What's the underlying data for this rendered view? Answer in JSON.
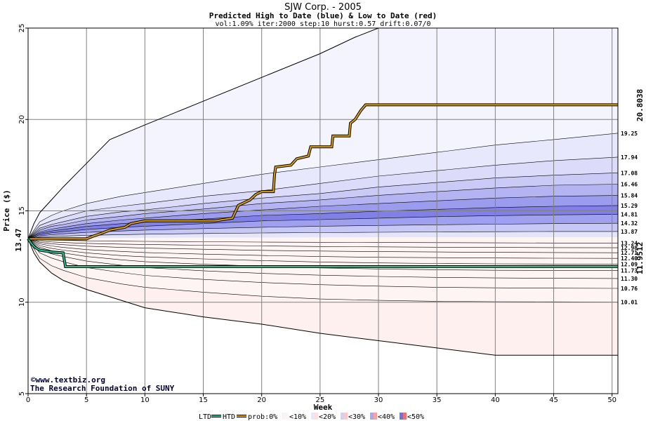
{
  "chart_data": {
    "type": "area",
    "title": "SJW Corp. - 2005",
    "subtitle": "Predicted High to Date (blue) &  Low to Date (red)",
    "params": "vol:1.09% iter:2000 step:10 hurst:0.57 drift:0.07/0",
    "xlabel": "Week",
    "ylabel": "Price ($)",
    "xlim": [
      0,
      50.5
    ],
    "ylim": [
      5,
      25
    ],
    "x_ticks": [
      0,
      5,
      10,
      15,
      20,
      25,
      30,
      35,
      40,
      45,
      50
    ],
    "y_ticks": [
      5,
      10,
      15,
      20,
      25
    ],
    "grid": true,
    "start_price": 13.47,
    "start_price_label": "13.47",
    "x": [
      0,
      1,
      2,
      3,
      5,
      8,
      10,
      15,
      20,
      25,
      30,
      35,
      40,
      45,
      50.5
    ],
    "bands_high": [
      {
        "end_label": "19.25",
        "values": [
          13.47,
          14.4,
          14.75,
          15.0,
          15.4,
          15.8,
          16.0,
          16.5,
          17.0,
          17.4,
          17.8,
          18.2,
          18.6,
          18.9,
          19.25
        ]
      },
      {
        "end_label": "17.94",
        "values": [
          13.47,
          14.2,
          14.45,
          14.65,
          15.0,
          15.25,
          15.4,
          15.8,
          16.1,
          16.5,
          16.9,
          17.2,
          17.5,
          17.75,
          17.94
        ]
      },
      {
        "end_label": "17.08",
        "values": [
          13.47,
          14.05,
          14.25,
          14.4,
          14.7,
          14.95,
          15.05,
          15.4,
          15.7,
          15.95,
          16.3,
          16.55,
          16.8,
          16.95,
          17.08
        ]
      },
      {
        "end_label": "16.46",
        "values": [
          13.47,
          13.95,
          14.15,
          14.25,
          14.5,
          14.7,
          14.85,
          15.1,
          15.4,
          15.6,
          15.85,
          16.05,
          16.25,
          16.4,
          16.46
        ]
      },
      {
        "end_label": "15.84",
        "values": [
          13.47,
          13.85,
          14.0,
          14.1,
          14.3,
          14.5,
          14.6,
          14.85,
          15.05,
          15.25,
          15.4,
          15.55,
          15.7,
          15.8,
          15.84
        ]
      },
      {
        "end_label": "15.29",
        "values": [
          13.47,
          13.78,
          13.9,
          13.98,
          14.15,
          14.3,
          14.38,
          14.55,
          14.75,
          14.85,
          14.98,
          15.08,
          15.18,
          15.25,
          15.29
        ]
      },
      {
        "end_label": "14.81",
        "values": [
          13.47,
          13.7,
          13.8,
          13.86,
          13.98,
          14.1,
          14.16,
          14.3,
          14.45,
          14.52,
          14.6,
          14.68,
          14.74,
          14.78,
          14.81
        ]
      },
      {
        "end_label": "14.32",
        "values": [
          13.47,
          13.63,
          13.7,
          13.74,
          13.82,
          13.9,
          13.95,
          14.03,
          14.1,
          14.16,
          14.2,
          14.24,
          14.27,
          14.3,
          14.32
        ]
      },
      {
        "end_label": "13.87",
        "values": [
          13.47,
          13.56,
          13.6,
          13.62,
          13.66,
          13.7,
          13.72,
          13.76,
          13.79,
          13.81,
          13.83,
          13.85,
          13.86,
          13.87,
          13.87
        ]
      }
    ],
    "bands_low": [
      {
        "end_label": "13.24",
        "values": [
          13.47,
          13.42,
          13.4,
          13.39,
          13.36,
          13.34,
          13.33,
          13.31,
          13.29,
          13.28,
          13.27,
          13.26,
          13.25,
          13.24,
          13.24
        ]
      },
      {
        "end_label": "12.98",
        "values": [
          13.47,
          13.35,
          13.3,
          13.27,
          13.22,
          13.18,
          13.16,
          13.12,
          13.08,
          13.05,
          13.03,
          13.01,
          13.0,
          12.99,
          12.98
        ]
      },
      {
        "end_label": "12.71",
        "values": [
          13.47,
          13.28,
          13.2,
          13.15,
          13.07,
          13.0,
          12.96,
          12.9,
          12.84,
          12.8,
          12.77,
          12.75,
          12.73,
          12.72,
          12.71
        ]
      },
      {
        "end_label": "12.40",
        "values": [
          13.47,
          13.2,
          13.08,
          13.0,
          12.88,
          12.78,
          12.72,
          12.63,
          12.56,
          12.5,
          12.46,
          12.44,
          12.42,
          12.41,
          12.4
        ]
      },
      {
        "end_label": "12.09",
        "values": [
          13.47,
          13.1,
          12.95,
          12.85,
          12.7,
          12.55,
          12.48,
          12.37,
          12.28,
          12.2,
          12.15,
          12.12,
          12.1,
          12.09,
          12.09
        ]
      },
      {
        "end_label": "11.73",
        "values": [
          13.47,
          13.0,
          12.82,
          12.7,
          12.5,
          12.32,
          12.22,
          12.08,
          11.97,
          11.88,
          11.82,
          11.78,
          11.75,
          11.74,
          11.73
        ]
      },
      {
        "end_label": "11.30",
        "values": [
          13.47,
          12.88,
          12.65,
          12.5,
          12.25,
          12.02,
          11.9,
          11.72,
          11.58,
          11.48,
          11.41,
          11.36,
          11.33,
          11.31,
          11.3
        ]
      },
      {
        "end_label": "10.76",
        "values": [
          13.47,
          12.7,
          12.42,
          12.22,
          11.9,
          11.62,
          11.47,
          11.25,
          11.08,
          10.96,
          10.88,
          10.82,
          10.79,
          10.77,
          10.76
        ]
      },
      {
        "end_label": "10.01",
        "values": [
          13.47,
          12.4,
          12.0,
          11.75,
          11.35,
          11.0,
          10.82,
          10.55,
          10.33,
          10.18,
          10.1,
          10.05,
          10.03,
          10.02,
          10.01
        ]
      }
    ],
    "outer_high": [
      {
        "x": 0,
        "y": 13.47
      },
      {
        "x": 0.5,
        "y": 14.3
      },
      {
        "x": 1,
        "y": 14.9
      },
      {
        "x": 2,
        "y": 15.6
      },
      {
        "x": 3,
        "y": 16.3
      },
      {
        "x": 5,
        "y": 17.6
      },
      {
        "x": 7,
        "y": 18.9
      },
      {
        "x": 10,
        "y": 19.7
      },
      {
        "x": 15,
        "y": 21.0
      },
      {
        "x": 20,
        "y": 22.3
      },
      {
        "x": 25,
        "y": 23.6
      },
      {
        "x": 28,
        "y": 24.5
      },
      {
        "x": 30,
        "y": 25.0
      },
      {
        "x": 50.5,
        "y": 25.0
      }
    ],
    "outer_low": [
      {
        "x": 0,
        "y": 13.47
      },
      {
        "x": 0.5,
        "y": 12.7
      },
      {
        "x": 1,
        "y": 12.2
      },
      {
        "x": 2,
        "y": 11.6
      },
      {
        "x": 3,
        "y": 11.2
      },
      {
        "x": 5,
        "y": 10.7
      },
      {
        "x": 10,
        "y": 9.7
      },
      {
        "x": 15,
        "y": 9.2
      },
      {
        "x": 20,
        "y": 8.8
      },
      {
        "x": 25,
        "y": 8.3
      },
      {
        "x": 30,
        "y": 7.9
      },
      {
        "x": 35,
        "y": 7.5
      },
      {
        "x": 40,
        "y": 7.1
      },
      {
        "x": 45,
        "y": 7.1
      },
      {
        "x": 50.5,
        "y": 7.1
      }
    ],
    "series": [
      {
        "name": "HTD",
        "color": "#e0a000",
        "end_value_label": "20.8038",
        "points": [
          {
            "x": 0,
            "y": 13.47
          },
          {
            "x": 5,
            "y": 13.47
          },
          {
            "x": 5.5,
            "y": 13.6
          },
          {
            "x": 6.2,
            "y": 13.75
          },
          {
            "x": 7,
            "y": 13.95
          },
          {
            "x": 8.3,
            "y": 14.1
          },
          {
            "x": 8.8,
            "y": 14.3
          },
          {
            "x": 10,
            "y": 14.45
          },
          {
            "x": 16,
            "y": 14.45
          },
          {
            "x": 17.5,
            "y": 14.6
          },
          {
            "x": 18,
            "y": 15.3
          },
          {
            "x": 19,
            "y": 15.6
          },
          {
            "x": 19.5,
            "y": 15.9
          },
          {
            "x": 20,
            "y": 16.05
          },
          {
            "x": 21,
            "y": 16.05
          },
          {
            "x": 21.1,
            "y": 17.0
          },
          {
            "x": 21.2,
            "y": 17.4
          },
          {
            "x": 22.5,
            "y": 17.5
          },
          {
            "x": 23,
            "y": 17.85
          },
          {
            "x": 24,
            "y": 18.0
          },
          {
            "x": 24.2,
            "y": 18.5
          },
          {
            "x": 26,
            "y": 18.5
          },
          {
            "x": 26.1,
            "y": 19.1
          },
          {
            "x": 27.5,
            "y": 19.1
          },
          {
            "x": 27.6,
            "y": 19.8
          },
          {
            "x": 28,
            "y": 20.0
          },
          {
            "x": 28.5,
            "y": 20.5
          },
          {
            "x": 28.9,
            "y": 20.8
          },
          {
            "x": 50.5,
            "y": 20.8
          }
        ]
      },
      {
        "name": "LTD",
        "color": "#20c090",
        "end_value_label": "11.9512",
        "points": [
          {
            "x": 0,
            "y": 13.47
          },
          {
            "x": 0.3,
            "y": 13.2
          },
          {
            "x": 0.6,
            "y": 13.0
          },
          {
            "x": 1,
            "y": 12.85
          },
          {
            "x": 2,
            "y": 12.75
          },
          {
            "x": 3,
            "y": 12.7
          },
          {
            "x": 3.2,
            "y": 11.95
          },
          {
            "x": 50.5,
            "y": 11.95
          }
        ]
      }
    ]
  },
  "credits": {
    "site": "www.textbiz.org",
    "org": "The Research Foundation of SUNY"
  },
  "legend": {
    "ltd": "LTD",
    "htd": "HTD",
    "prob_prefix": "prob:0%",
    "labels": [
      "<10%",
      "<20%",
      "<30%",
      "<40%",
      "<50%"
    ],
    "swatch_colors": [
      "#f4f4ff",
      "#e8e8fc",
      "#d0d0f8",
      "#a8a8f0",
      "#7070e0"
    ],
    "swatch_colors_red": [
      "#fff4f4",
      "#ffe0e0",
      "#ffc8c8",
      "#ffa0a0",
      "#f07070"
    ]
  },
  "colors": {
    "high_bands": [
      "#f4f4ff",
      "#e8e8fc",
      "#dcdcfa",
      "#cacaf6",
      "#b4b4f2",
      "#9c9cee",
      "#8080e8",
      "#a0a0f0",
      "#c8c8f6",
      "#e4e4fa"
    ],
    "low_bands": [
      "#fff0f0",
      "#ffe4e4",
      "#ffd0d0",
      "#ffbcbc",
      "#ffa0a0",
      "#f88888",
      "#ffa8a8",
      "#ffc8c8",
      "#ffdede",
      "#fff4f4"
    ]
  }
}
